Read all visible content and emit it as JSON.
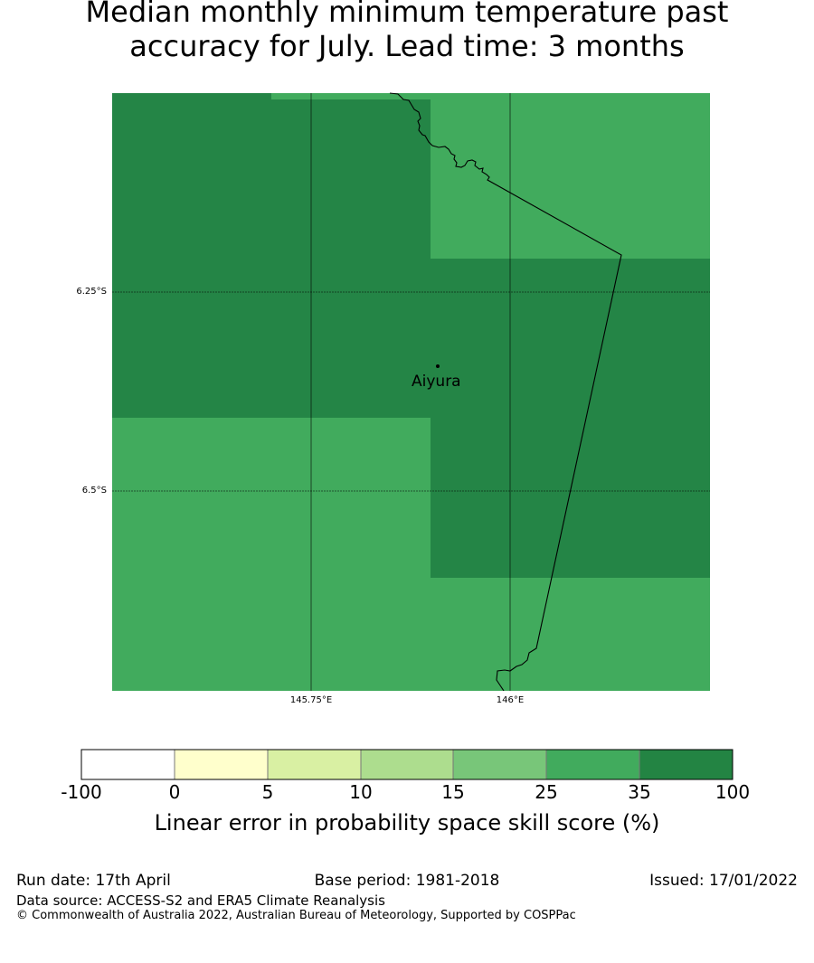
{
  "title_line1": "Median monthly minimum temperature past",
  "title_line2": "accuracy for July. Lead time: 3 months",
  "map": {
    "lat_labels": [
      "6.25°S",
      "6.5°S"
    ],
    "lon_labels": [
      "145.75°E",
      "146°E"
    ],
    "place": "Aiyura",
    "colors": {
      "dark": "#248546",
      "mid": "#41ab5d"
    }
  },
  "colorbar": {
    "ticks": [
      "-100",
      "0",
      "5",
      "10",
      "15",
      "25",
      "35",
      "100"
    ],
    "colors": [
      "#ffffff",
      "#ffffcc",
      "#d9f0a3",
      "#addd8e",
      "#78c679",
      "#41ab5d",
      "#238443"
    ],
    "label": "Linear error in probability space skill score (%)"
  },
  "footer": {
    "run_date": "Run date: 17th April",
    "base_period": "Base period: 1981-2018",
    "issued": "Issued: 17/01/2022",
    "source": "Data source: ACCESS-S2 and ERA5 Climate Reanalysis",
    "copyright": "© Commonwealth of Australia 2022, Australian Bureau of Meteorology, Supported by COSPPac"
  }
}
